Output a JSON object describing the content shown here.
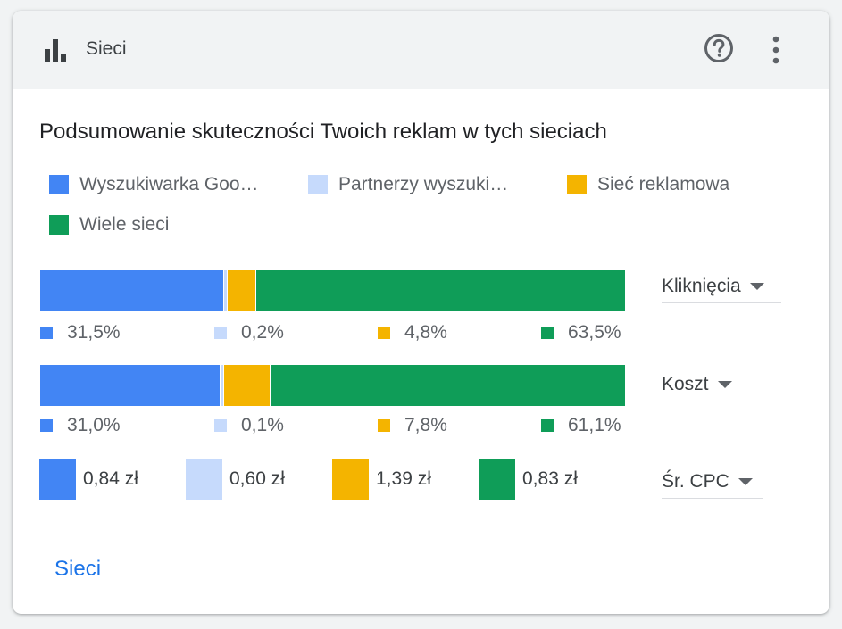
{
  "header": {
    "title": "Sieci",
    "help_icon": "help-circle-icon",
    "more_icon": "more-vert-icon",
    "chart_icon": "bar-chart-icon"
  },
  "summary_title": "Podsumowanie skuteczności Twoich reklam w tych sieciach",
  "colors": {
    "search": "#4285f4",
    "partners": "#c6dafc",
    "display": "#f4b400",
    "multi": "#0f9d58"
  },
  "legend": [
    {
      "label": "Wyszukiwarka Goo…",
      "color": "#4285f4"
    },
    {
      "label": "Partnerzy wyszuki…",
      "color": "#c6dafc"
    },
    {
      "label": "Sieć reklamowa",
      "color": "#f4b400"
    },
    {
      "label": "Wiele sieci",
      "color": "#0f9d58"
    }
  ],
  "chart_data": [
    {
      "type": "bar",
      "stacked": true,
      "categories": [
        "Wyszukiwarka Goo…",
        "Partnerzy wyszuki…",
        "Sieć reklamowa",
        "Wiele sieci"
      ],
      "metric": "Kliknięcia",
      "values": [
        31.5,
        0.2,
        4.8,
        63.5
      ],
      "labels": [
        "31,5%",
        "0,2%",
        "4,8%",
        "63,5%"
      ]
    },
    {
      "type": "bar",
      "stacked": true,
      "categories": [
        "Wyszukiwarka Goo…",
        "Partnerzy wyszuki…",
        "Sieć reklamowa",
        "Wiele sieci"
      ],
      "metric": "Koszt",
      "values": [
        31.0,
        0.1,
        7.8,
        61.1
      ],
      "labels": [
        "31,0%",
        "0,1%",
        "7,8%",
        "61,1%"
      ]
    }
  ],
  "cpc": {
    "metric": "Śr. CPC",
    "values": [
      "0,84 zł",
      "0,60 zł",
      "1,39 zł",
      "0,83 zł"
    ]
  },
  "selectors": {
    "clicks": "Kliknięcia",
    "cost": "Koszt",
    "cpc": "Śr. CPC"
  },
  "footer_link": "Sieci"
}
